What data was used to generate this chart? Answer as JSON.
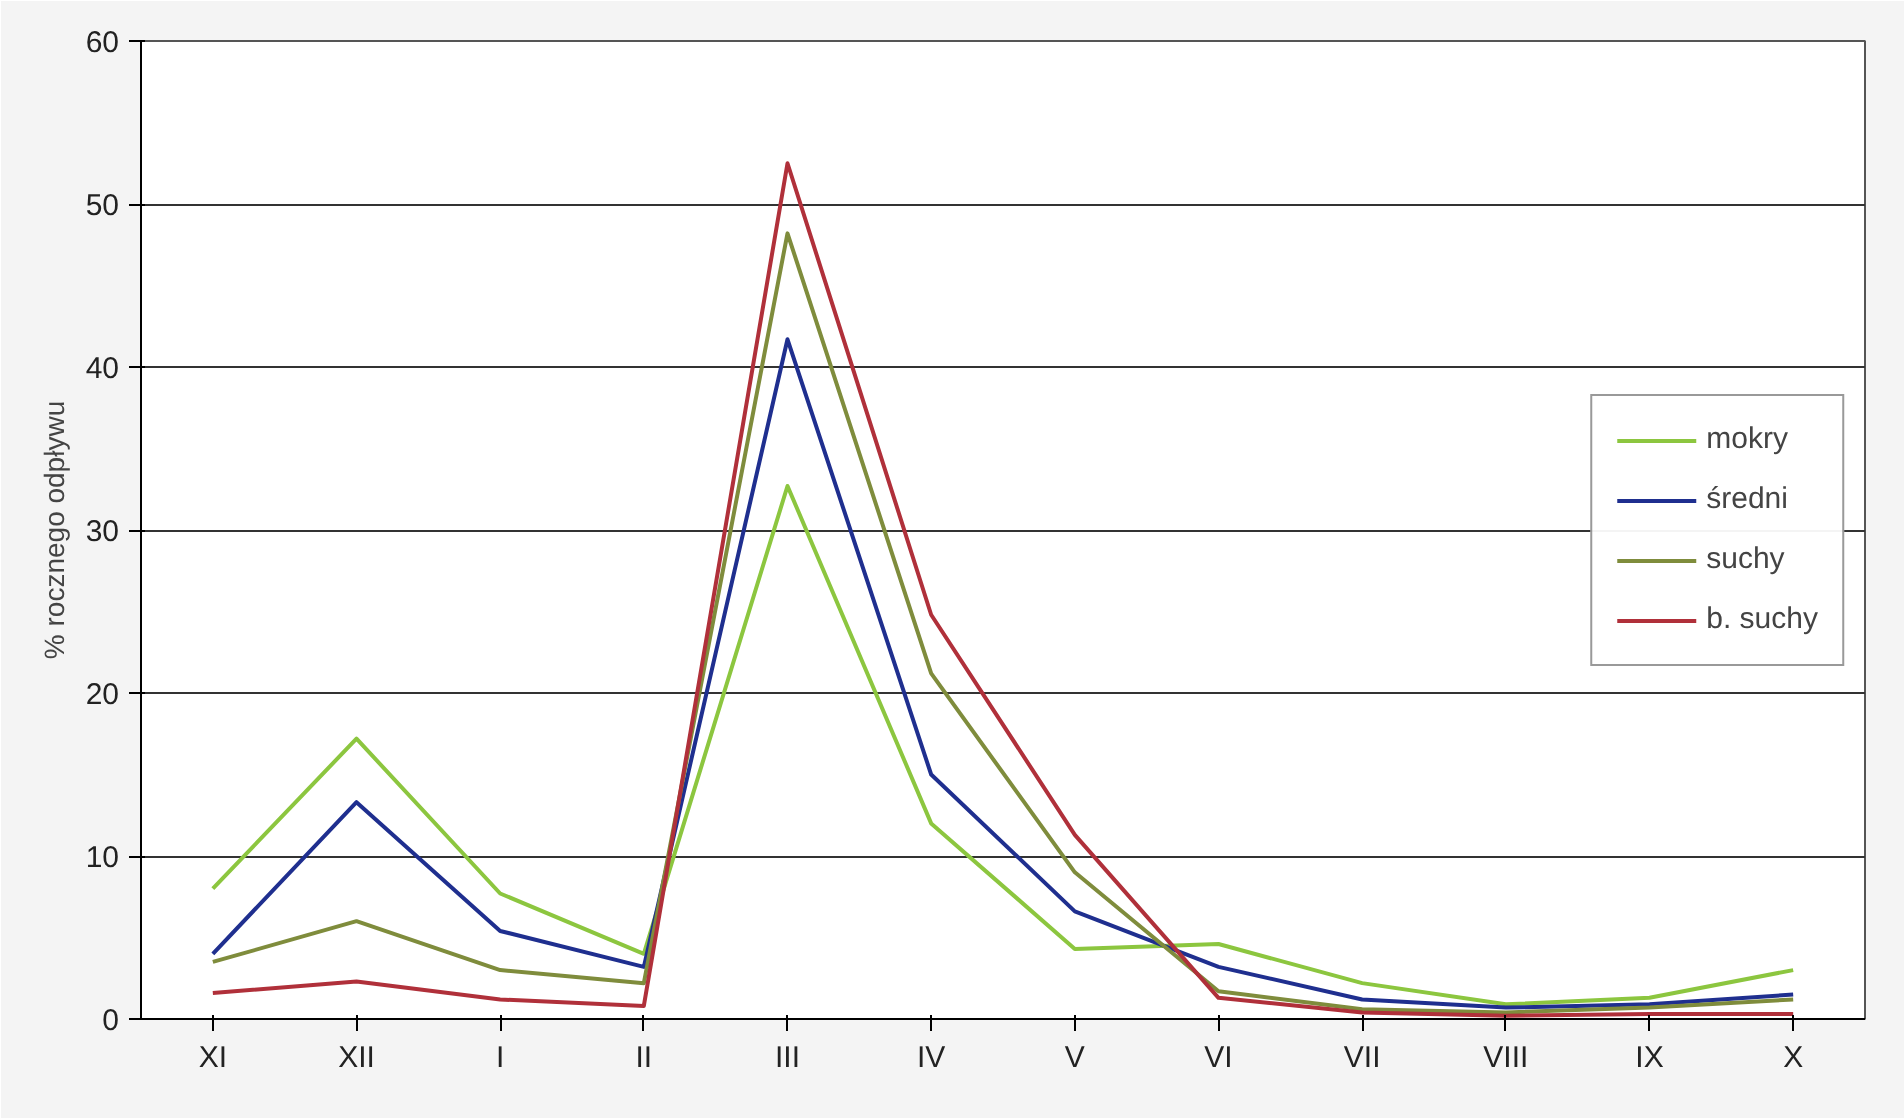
{
  "chart_data": {
    "type": "line",
    "ylabel": "% rocznego odpływu",
    "categories": [
      "XI",
      "XII",
      "I",
      "II",
      "III",
      "IV",
      "V",
      "VI",
      "VII",
      "VIII",
      "IX",
      "X"
    ],
    "ylim": [
      0,
      60
    ],
    "yticks": [
      0,
      10,
      20,
      30,
      40,
      50,
      60
    ],
    "grid": "y",
    "legend": "right",
    "marker": "none",
    "line_style": "solid",
    "series": [
      {
        "name": "mokry",
        "color": "#8cc63f",
        "values": [
          8,
          17.2,
          7.7,
          4,
          32.7,
          12,
          4.3,
          4.6,
          2.2,
          0.9,
          1.3,
          3.0
        ]
      },
      {
        "name": "średni",
        "color": "#1f2f8f",
        "values": [
          4,
          13.3,
          5.4,
          3.2,
          41.7,
          15,
          6.6,
          3.2,
          1.2,
          0.7,
          0.9,
          1.5
        ]
      },
      {
        "name": "suchy",
        "color": "#7f8c3c",
        "values": [
          3.5,
          6,
          3,
          2.2,
          48.2,
          21.2,
          9,
          1.7,
          0.6,
          0.4,
          0.7,
          1.2
        ]
      },
      {
        "name": "b. suchy",
        "color": "#b0303a",
        "values": [
          1.6,
          2.3,
          1.2,
          0.8,
          52.5,
          24.8,
          11.3,
          1.3,
          0.4,
          0.2,
          0.3,
          0.3
        ]
      }
    ]
  }
}
